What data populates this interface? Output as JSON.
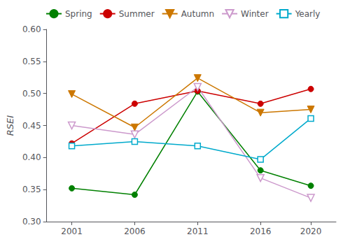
{
  "chart_data": {
    "type": "line",
    "x": [
      2001,
      2006,
      2011,
      2016,
      2020
    ],
    "xlim": [
      1999,
      2022
    ],
    "xticks": [
      2001,
      2006,
      2011,
      2016,
      2020
    ],
    "ylabel": "RSEI",
    "ylim": [
      0.3,
      0.6
    ],
    "yticks": [
      {
        "value": 0.3,
        "label": "0.30"
      },
      0.35,
      {
        "value": 0.4,
        "label": "0.40"
      },
      0.45,
      {
        "value": 0.5,
        "label": "0.50"
      },
      0.55,
      {
        "value": 0.6,
        "label": "0.60"
      }
    ],
    "grid": false,
    "legend": "upper left",
    "series": [
      {
        "name": "Spring",
        "color": "#008000",
        "marker": "circle",
        "values": [
          0.352,
          0.342,
          0.503,
          0.38,
          0.356
        ]
      },
      {
        "name": "Summer",
        "color": "#cc0000",
        "marker": "circle",
        "values": [
          0.422,
          0.484,
          0.504,
          0.484,
          0.507
        ]
      },
      {
        "name": "Autumn",
        "color": "#cc7700",
        "marker": "triangle_down",
        "values": [
          0.499,
          0.447,
          0.524,
          0.47,
          0.475
        ]
      },
      {
        "name": "Winter",
        "color": "#cc99cc",
        "marker": "open_triangle_down",
        "values": [
          0.45,
          0.436,
          0.51,
          0.368,
          0.337
        ]
      },
      {
        "name": "Yearly",
        "color": "#00aacc",
        "marker": "open_square",
        "values": [
          0.418,
          0.425,
          0.418,
          0.397,
          0.461
        ]
      }
    ]
  }
}
